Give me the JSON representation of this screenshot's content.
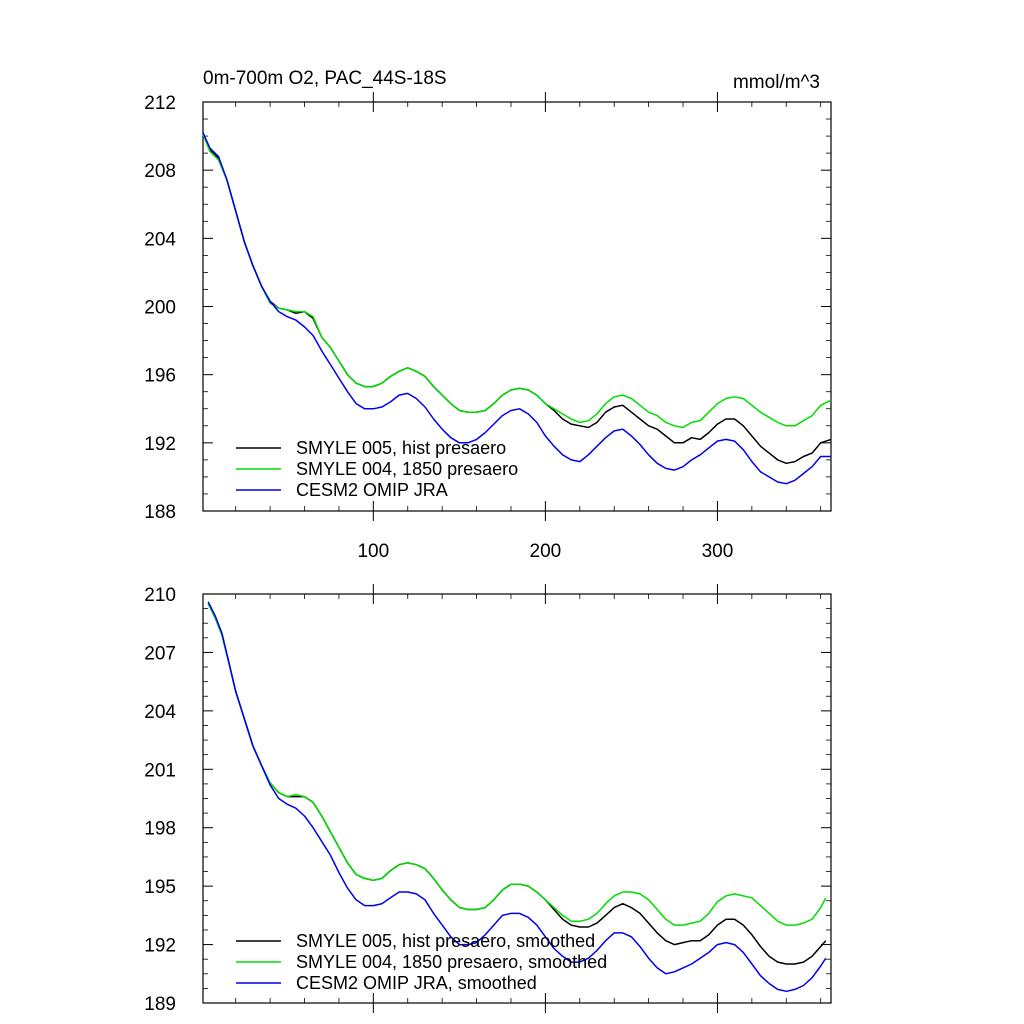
{
  "chart_data": [
    {
      "type": "line",
      "title": "0m-700m O2, PAC_44S-18S",
      "units": "mmol/m^3",
      "xlim": [
        1,
        366
      ],
      "ylim": [
        188,
        212
      ],
      "xticks": [
        100,
        200,
        300
      ],
      "yticks": [
        188,
        192,
        196,
        200,
        204,
        208,
        212
      ],
      "legend_position": "bottom-left",
      "series": [
        {
          "name": "SMYLE 005, hist presaero",
          "color": "#000000",
          "x": [
            1,
            5,
            10,
            15,
            20,
            25,
            30,
            35,
            40,
            45,
            50,
            55,
            60,
            65,
            70,
            75,
            80,
            85,
            90,
            95,
            100,
            105,
            110,
            115,
            120,
            125,
            130,
            135,
            140,
            145,
            150,
            155,
            160,
            165,
            170,
            175,
            180,
            185,
            190,
            195,
            200,
            205,
            210,
            215,
            220,
            225,
            230,
            235,
            240,
            245,
            250,
            255,
            260,
            265,
            270,
            275,
            280,
            285,
            290,
            295,
            300,
            305,
            310,
            315,
            320,
            325,
            330,
            335,
            340,
            345,
            350,
            355,
            360,
            366
          ],
          "y": [
            210.2,
            209.2,
            208.7,
            207.4,
            205.6,
            203.8,
            202.4,
            201.2,
            200.3,
            199.9,
            199.8,
            199.6,
            199.7,
            199.3,
            198.2,
            197.6,
            196.8,
            196.0,
            195.5,
            195.3,
            195.3,
            195.5,
            195.9,
            196.2,
            196.4,
            196.2,
            195.9,
            195.3,
            194.8,
            194.3,
            193.9,
            193.8,
            193.8,
            193.9,
            194.3,
            194.8,
            195.1,
            195.2,
            195.1,
            194.8,
            194.3,
            193.9,
            193.4,
            193.1,
            193.0,
            192.9,
            193.2,
            193.8,
            194.1,
            194.2,
            193.8,
            193.4,
            193.0,
            192.8,
            192.4,
            192.0,
            192.0,
            192.3,
            192.2,
            192.6,
            193.1,
            193.4,
            193.4,
            193.0,
            192.4,
            191.8,
            191.4,
            191.0,
            190.8,
            190.9,
            191.2,
            191.4,
            192.0,
            192.2
          ]
        },
        {
          "name": "SMYLE 004, 1850 presaero",
          "color": "#00dd00",
          "x": [
            1,
            5,
            10,
            15,
            20,
            25,
            30,
            35,
            40,
            45,
            50,
            55,
            60,
            65,
            70,
            75,
            80,
            85,
            90,
            95,
            100,
            105,
            110,
            115,
            120,
            125,
            130,
            135,
            140,
            145,
            150,
            155,
            160,
            165,
            170,
            175,
            180,
            185,
            190,
            195,
            200,
            205,
            210,
            215,
            220,
            225,
            230,
            235,
            240,
            245,
            250,
            255,
            260,
            265,
            270,
            275,
            280,
            285,
            290,
            295,
            300,
            305,
            310,
            315,
            320,
            325,
            330,
            335,
            340,
            345,
            350,
            355,
            360,
            366
          ],
          "y": [
            210.1,
            209.1,
            208.6,
            207.4,
            205.6,
            203.8,
            202.4,
            201.2,
            200.2,
            199.9,
            199.8,
            199.7,
            199.7,
            199.4,
            198.2,
            197.6,
            196.8,
            196.0,
            195.5,
            195.3,
            195.3,
            195.5,
            195.9,
            196.2,
            196.4,
            196.2,
            195.9,
            195.3,
            194.8,
            194.3,
            193.9,
            193.8,
            193.8,
            193.9,
            194.3,
            194.8,
            195.1,
            195.2,
            195.1,
            194.8,
            194.3,
            194.0,
            193.7,
            193.4,
            193.2,
            193.3,
            193.7,
            194.3,
            194.7,
            194.8,
            194.6,
            194.2,
            193.8,
            193.6,
            193.2,
            193.0,
            192.9,
            193.2,
            193.3,
            193.8,
            194.3,
            194.6,
            194.7,
            194.6,
            194.2,
            193.8,
            193.5,
            193.2,
            193.0,
            193.0,
            193.3,
            193.6,
            194.2,
            194.5
          ]
        },
        {
          "name": "CESM2 OMIP JRA",
          "color": "#0000ee",
          "x": [
            1,
            5,
            10,
            15,
            20,
            25,
            30,
            35,
            40,
            45,
            50,
            55,
            60,
            65,
            70,
            75,
            80,
            85,
            90,
            95,
            100,
            105,
            110,
            115,
            120,
            125,
            130,
            135,
            140,
            145,
            150,
            155,
            160,
            165,
            170,
            175,
            180,
            185,
            190,
            195,
            200,
            205,
            210,
            215,
            220,
            225,
            230,
            235,
            240,
            245,
            250,
            255,
            260,
            265,
            270,
            275,
            280,
            285,
            290,
            295,
            300,
            305,
            310,
            315,
            320,
            325,
            330,
            335,
            340,
            345,
            350,
            355,
            360,
            366
          ],
          "y": [
            210.2,
            209.3,
            208.8,
            207.4,
            205.6,
            203.8,
            202.4,
            201.2,
            200.3,
            199.7,
            199.4,
            199.2,
            198.8,
            198.3,
            197.4,
            196.6,
            195.8,
            195.0,
            194.3,
            194.0,
            194.0,
            194.1,
            194.4,
            194.8,
            194.9,
            194.6,
            194.1,
            193.4,
            192.8,
            192.3,
            192.0,
            192.0,
            192.2,
            192.6,
            193.1,
            193.6,
            193.9,
            194.0,
            193.7,
            193.2,
            192.4,
            191.8,
            191.3,
            191.0,
            190.9,
            191.3,
            191.8,
            192.3,
            192.7,
            192.8,
            192.4,
            191.9,
            191.3,
            190.8,
            190.5,
            190.4,
            190.6,
            191.0,
            191.3,
            191.7,
            192.1,
            192.2,
            192.1,
            191.6,
            190.9,
            190.3,
            190.0,
            189.7,
            189.6,
            189.8,
            190.2,
            190.6,
            191.2,
            191.2
          ]
        }
      ]
    },
    {
      "type": "line",
      "xlim": [
        1,
        366
      ],
      "ylim": [
        189,
        210
      ],
      "xticks": [
        100,
        200,
        300
      ],
      "yticks": [
        189,
        192,
        195,
        198,
        201,
        204,
        207,
        210
      ],
      "legend_position": "bottom-left",
      "series": [
        {
          "name": "SMYLE 005, hist presaero, smoothed",
          "color": "#000000",
          "x": [
            4,
            8,
            12,
            16,
            20,
            25,
            30,
            35,
            40,
            45,
            50,
            55,
            60,
            65,
            70,
            75,
            80,
            85,
            90,
            95,
            100,
            105,
            110,
            115,
            120,
            125,
            130,
            135,
            140,
            145,
            150,
            155,
            160,
            165,
            170,
            175,
            180,
            185,
            190,
            195,
            200,
            205,
            210,
            215,
            220,
            225,
            230,
            235,
            240,
            245,
            250,
            255,
            260,
            265,
            270,
            275,
            280,
            285,
            290,
            295,
            300,
            305,
            310,
            315,
            320,
            325,
            330,
            335,
            340,
            345,
            350,
            355,
            360,
            363
          ],
          "y": [
            209.5,
            208.8,
            207.9,
            206.5,
            205.0,
            203.6,
            202.2,
            201.2,
            200.3,
            199.8,
            199.6,
            199.6,
            199.6,
            199.3,
            198.6,
            197.8,
            197.0,
            196.2,
            195.6,
            195.4,
            195.3,
            195.4,
            195.8,
            196.1,
            196.2,
            196.1,
            195.9,
            195.4,
            194.8,
            194.3,
            193.9,
            193.8,
            193.8,
            193.9,
            194.3,
            194.8,
            195.1,
            195.1,
            195.0,
            194.7,
            194.3,
            193.8,
            193.3,
            193.0,
            192.9,
            192.9,
            193.1,
            193.5,
            193.9,
            194.1,
            193.9,
            193.6,
            193.1,
            192.6,
            192.2,
            192.0,
            192.1,
            192.2,
            192.2,
            192.5,
            193.0,
            193.3,
            193.3,
            193.0,
            192.5,
            191.9,
            191.4,
            191.1,
            191.0,
            191.0,
            191.1,
            191.4,
            191.9,
            192.2
          ]
        },
        {
          "name": "SMYLE 004, 1850 presaero, smoothed",
          "color": "#00dd00",
          "x": [
            4,
            8,
            12,
            16,
            20,
            25,
            30,
            35,
            40,
            45,
            50,
            55,
            60,
            65,
            70,
            75,
            80,
            85,
            90,
            95,
            100,
            105,
            110,
            115,
            120,
            125,
            130,
            135,
            140,
            145,
            150,
            155,
            160,
            165,
            170,
            175,
            180,
            185,
            190,
            195,
            200,
            205,
            210,
            215,
            220,
            225,
            230,
            235,
            240,
            245,
            250,
            255,
            260,
            265,
            270,
            275,
            280,
            285,
            290,
            295,
            300,
            305,
            310,
            315,
            320,
            325,
            330,
            335,
            340,
            345,
            350,
            355,
            360,
            363
          ],
          "y": [
            209.5,
            208.8,
            207.9,
            206.5,
            205.0,
            203.6,
            202.2,
            201.2,
            200.3,
            199.8,
            199.6,
            199.7,
            199.6,
            199.3,
            198.6,
            197.8,
            197.0,
            196.2,
            195.6,
            195.4,
            195.3,
            195.4,
            195.8,
            196.1,
            196.2,
            196.1,
            195.9,
            195.4,
            194.8,
            194.3,
            193.9,
            193.8,
            193.8,
            193.9,
            194.3,
            194.8,
            195.1,
            195.1,
            195.0,
            194.7,
            194.3,
            193.9,
            193.5,
            193.2,
            193.2,
            193.3,
            193.6,
            194.1,
            194.5,
            194.7,
            194.7,
            194.6,
            194.3,
            193.8,
            193.3,
            193.0,
            193.0,
            193.1,
            193.2,
            193.6,
            194.2,
            194.5,
            194.6,
            194.5,
            194.4,
            194.0,
            193.6,
            193.2,
            193.0,
            193.0,
            193.1,
            193.3,
            193.9,
            194.4
          ]
        },
        {
          "name": "CESM2 OMIP JRA, smoothed",
          "color": "#0000ee",
          "x": [
            4,
            8,
            12,
            16,
            20,
            25,
            30,
            35,
            40,
            45,
            50,
            55,
            60,
            65,
            70,
            75,
            80,
            85,
            90,
            95,
            100,
            105,
            110,
            115,
            120,
            125,
            130,
            135,
            140,
            145,
            150,
            155,
            160,
            165,
            170,
            175,
            180,
            185,
            190,
            195,
            200,
            205,
            210,
            215,
            220,
            225,
            230,
            235,
            240,
            245,
            250,
            255,
            260,
            265,
            270,
            275,
            280,
            285,
            290,
            295,
            300,
            305,
            310,
            315,
            320,
            325,
            330,
            335,
            340,
            345,
            350,
            355,
            360,
            363
          ],
          "y": [
            209.6,
            208.9,
            208.0,
            206.5,
            205.0,
            203.6,
            202.2,
            201.2,
            200.2,
            199.5,
            199.2,
            199.0,
            198.6,
            198.0,
            197.3,
            196.6,
            195.7,
            194.9,
            194.3,
            194.0,
            194.0,
            194.1,
            194.4,
            194.7,
            194.7,
            194.6,
            194.3,
            193.6,
            193.0,
            192.4,
            192.0,
            192.0,
            192.1,
            192.5,
            193.0,
            193.5,
            193.6,
            193.6,
            193.4,
            193.0,
            192.4,
            191.8,
            191.4,
            191.1,
            191.1,
            191.3,
            191.7,
            192.2,
            192.6,
            192.6,
            192.4,
            191.9,
            191.3,
            190.8,
            190.5,
            190.6,
            190.8,
            191.0,
            191.3,
            191.6,
            192.0,
            192.1,
            192.0,
            191.6,
            191.0,
            190.4,
            190.0,
            189.7,
            189.6,
            189.7,
            189.9,
            190.3,
            190.9,
            191.3
          ]
        }
      ]
    }
  ]
}
